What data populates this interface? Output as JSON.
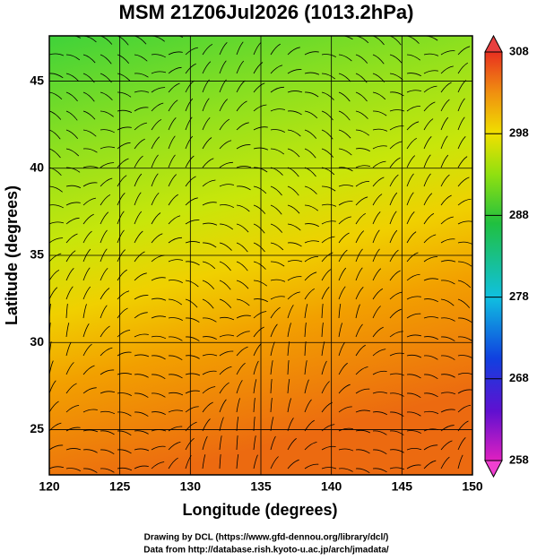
{
  "title": "MSM 21Z06Jul2026 (1013.2hPa)",
  "x_axis": {
    "label": "Longitude (degrees)",
    "lim": [
      120,
      150
    ],
    "ticks": [
      120,
      125,
      130,
      135,
      140,
      145,
      150
    ]
  },
  "y_axis": {
    "label": "Latitude  (degrees)",
    "lim": [
      22.4,
      47.6
    ],
    "ticks": [
      25,
      30,
      35,
      40,
      45
    ]
  },
  "colorbar": {
    "lim": [
      258,
      308
    ],
    "ticks": [
      258,
      268,
      278,
      288,
      298,
      308
    ]
  },
  "credits": [
    "Drawing by DCL (https://www.gfd-dennou.org/library/dcl/)",
    "Data from http://database.rish.kyoto-u.ac.jp/arch/jmadata/"
  ]
}
